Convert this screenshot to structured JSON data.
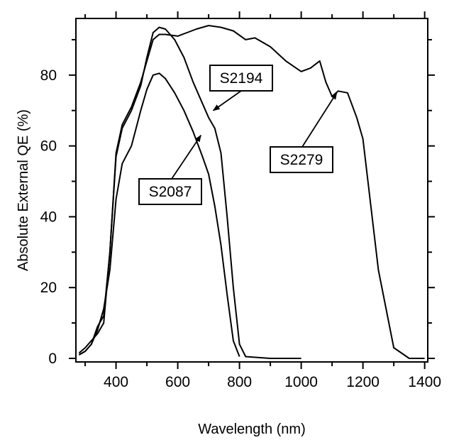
{
  "chart_data": {
    "type": "line",
    "title": "",
    "xlabel": "Wavelength (nm)",
    "ylabel": "Absolute External QE (%)",
    "xlim": [
      270,
      1410
    ],
    "ylim": [
      -1,
      96
    ],
    "xticks": [
      400,
      600,
      800,
      1000,
      1200,
      1400
    ],
    "yticks": [
      0,
      20,
      40,
      60,
      80
    ],
    "grid": false,
    "legend": "none",
    "series": [
      {
        "name": "S2087",
        "x": [
          280,
          300,
          320,
          340,
          360,
          380,
          400,
          420,
          450,
          480,
          500,
          520,
          540,
          560,
          590,
          620,
          650,
          680,
          700,
          720,
          740,
          760,
          780,
          800
        ],
        "y": [
          1,
          2,
          4,
          8,
          14,
          25,
          45,
          55,
          60,
          70,
          76,
          80,
          80.5,
          79,
          75,
          70,
          64,
          57,
          52,
          43,
          32,
          18,
          5,
          0.5
        ]
      },
      {
        "name": "S2194",
        "x": [
          280,
          300,
          320,
          340,
          360,
          380,
          400,
          420,
          450,
          480,
          500,
          520,
          540,
          560,
          590,
          620,
          650,
          680,
          700,
          720,
          740,
          760,
          780,
          800,
          820,
          900,
          1000
        ],
        "y": [
          1,
          2,
          4,
          9,
          12,
          30,
          57,
          65,
          70,
          77,
          85,
          92,
          93.5,
          93,
          90,
          85,
          78,
          72,
          68,
          65,
          58,
          40,
          20,
          4,
          0.5,
          0,
          0
        ]
      },
      {
        "name": "S2279",
        "x": [
          280,
          300,
          320,
          340,
          360,
          380,
          400,
          420,
          450,
          480,
          500,
          520,
          540,
          560,
          600,
          630,
          660,
          700,
          740,
          780,
          820,
          850,
          900,
          950,
          1000,
          1030,
          1060,
          1080,
          1100,
          1120,
          1150,
          1180,
          1200,
          1250,
          1300,
          1350,
          1400
        ],
        "y": [
          1.5,
          3,
          5,
          7,
          10,
          30,
          58,
          66,
          71,
          78,
          84,
          90,
          91.5,
          91.5,
          91,
          92,
          93,
          94,
          93.5,
          92.5,
          90,
          90.5,
          88,
          84,
          81,
          82,
          84,
          78,
          74,
          75.5,
          75,
          68,
          62,
          25,
          3,
          0,
          0
        ]
      }
    ],
    "annotations": [
      {
        "text": "S2087",
        "points_to": {
          "x": 675,
          "y": 63
        }
      },
      {
        "text": "S2194",
        "points_to": {
          "x": 715,
          "y": 70
        }
      },
      {
        "text": "S2279",
        "points_to": {
          "x": 1115,
          "y": 75
        }
      }
    ]
  }
}
